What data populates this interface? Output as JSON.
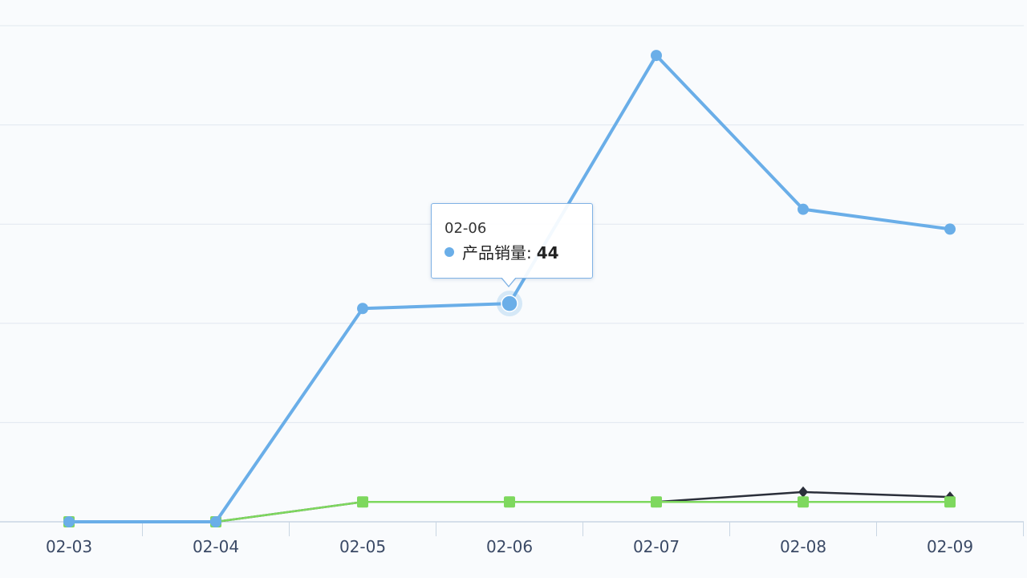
{
  "chart_data": {
    "type": "line",
    "categories": [
      "02-03",
      "02-04",
      "02-05",
      "02-06",
      "02-07",
      "02-08",
      "02-09"
    ],
    "series": [
      {
        "name": "产品销量",
        "values": [
          0,
          0,
          43,
          44,
          94,
          63,
          59
        ],
        "color": "#6aaee8",
        "marker": "circle"
      },
      {
        "values": [
          0,
          0,
          4,
          4,
          4,
          6,
          5
        ],
        "color": "#2b2f3a",
        "marker": "diamond"
      },
      {
        "values": [
          0,
          0,
          4,
          4,
          4,
          4,
          4
        ],
        "color": "#7ed85e",
        "marker": "square"
      }
    ],
    "ylim": [
      0,
      100
    ],
    "grid": true,
    "title": "",
    "xlabel": "",
    "ylabel": ""
  },
  "tooltip": {
    "category": "02-06",
    "series_name": "产品销量",
    "separator": ":",
    "value": "44"
  }
}
